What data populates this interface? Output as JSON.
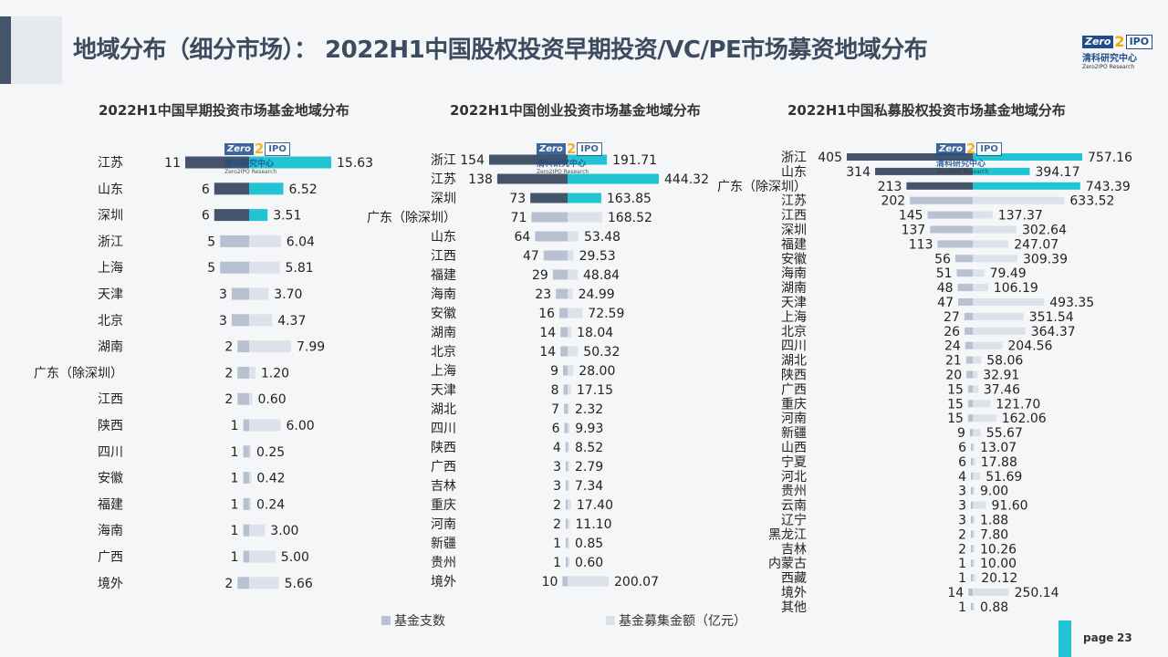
{
  "title": "地域分布（细分市场）：  2022H1中国股权投资早期投资/VC/PE市场募资地域分布",
  "logo": {
    "z": "Zero",
    "two": "2",
    "ipo": "IPO",
    "cn": "清科研究中心",
    "en": "Zero2IPO Research"
  },
  "legend": {
    "count": "基金支数",
    "amount": "基金募集金额（亿元）"
  },
  "page": {
    "label": "page",
    "number": "23"
  },
  "colors": {
    "dark": "#44546a",
    "cyan": "#22c4d3",
    "light_count": "#b7c1d1",
    "light_amount": "#dde2ea",
    "accent": "#22c4d3"
  },
  "chart_data": [
    {
      "type": "bar",
      "title": "2022H1中国早期投资市场基金地域分布",
      "categories": [
        "江苏",
        "山东",
        "深圳",
        "浙江",
        "上海",
        "天津",
        "北京",
        "湖南",
        "广东（除深圳）",
        "江西",
        "陕西",
        "四川",
        "安徽",
        "福建",
        "海南",
        "广西",
        "境外"
      ],
      "series": [
        {
          "name": "基金支数",
          "values": [
            11,
            6,
            6,
            5,
            5,
            3,
            3,
            2,
            2,
            2,
            1,
            1,
            1,
            1,
            1,
            1,
            2
          ]
        },
        {
          "name": "基金募集金额（亿元）",
          "values": [
            15.63,
            6.52,
            3.51,
            6.04,
            5.81,
            3.7,
            4.37,
            7.99,
            1.2,
            0.6,
            6.0,
            0.25,
            0.42,
            0.24,
            3.0,
            5.0,
            5.66
          ]
        }
      ],
      "amount_labels": [
        "15.63",
        "6.52",
        "3.51",
        "6.04",
        "5.81",
        "3.70",
        "4.37",
        "7.99",
        "1.20",
        "0.60",
        "6.00",
        "0.25",
        "0.42",
        "0.24",
        "3.00",
        "5.00",
        "5.66"
      ],
      "highlight_top": 3
    },
    {
      "type": "bar",
      "title": "2022H1中国创业投资市场基金地域分布",
      "categories": [
        "浙江",
        "江苏",
        "深圳",
        "广东（除深圳）",
        "山东",
        "江西",
        "福建",
        "海南",
        "安徽",
        "湖南",
        "北京",
        "上海",
        "天津",
        "湖北",
        "四川",
        "陕西",
        "广西",
        "吉林",
        "重庆",
        "河南",
        "新疆",
        "贵州",
        "境外"
      ],
      "series": [
        {
          "name": "基金支数",
          "values": [
            154,
            138,
            73,
            71,
            64,
            47,
            29,
            23,
            16,
            14,
            14,
            9,
            8,
            7,
            6,
            4,
            3,
            3,
            2,
            2,
            1,
            1,
            10
          ]
        },
        {
          "name": "基金募集金额（亿元）",
          "values": [
            191.71,
            444.32,
            163.85,
            168.52,
            53.48,
            29.53,
            48.84,
            24.99,
            72.59,
            18.04,
            50.32,
            28.0,
            17.15,
            2.32,
            9.93,
            8.52,
            2.79,
            7.34,
            17.4,
            11.1,
            0.85,
            0.6,
            200.07
          ]
        }
      ],
      "amount_labels": [
        "191.71",
        "444.32",
        "163.85",
        "168.52",
        "53.48",
        "29.53",
        "48.84",
        "24.99",
        "72.59",
        "18.04",
        "50.32",
        "28.00",
        "17.15",
        "2.32",
        "9.93",
        "8.52",
        "2.79",
        "7.34",
        "17.40",
        "11.10",
        "0.85",
        "0.60",
        "200.07"
      ],
      "highlight_top": 3
    },
    {
      "type": "bar",
      "title": "2022H1中国私募股权投资市场基金地域分布",
      "categories": [
        "浙江",
        "山东",
        "广东（除深圳）",
        "江苏",
        "江西",
        "深圳",
        "福建",
        "安徽",
        "海南",
        "湖南",
        "天津",
        "上海",
        "北京",
        "四川",
        "湖北",
        "陕西",
        "广西",
        "重庆",
        "河南",
        "新疆",
        "山西",
        "宁夏",
        "河北",
        "贵州",
        "云南",
        "辽宁",
        "黑龙江",
        "吉林",
        "内蒙古",
        "西藏",
        "境外",
        "其他"
      ],
      "series": [
        {
          "name": "基金支数",
          "values": [
            405,
            314,
            213,
            202,
            145,
            137,
            113,
            56,
            51,
            48,
            47,
            27,
            26,
            24,
            21,
            20,
            15,
            15,
            15,
            9,
            6,
            6,
            4,
            3,
            3,
            3,
            2,
            2,
            1,
            1,
            14,
            1
          ]
        },
        {
          "name": "基金募集金额（亿元）",
          "values": [
            757.16,
            394.17,
            743.39,
            633.52,
            137.37,
            302.64,
            247.07,
            309.39,
            79.49,
            106.19,
            493.35,
            351.54,
            364.37,
            204.56,
            58.06,
            32.91,
            37.46,
            121.7,
            162.06,
            55.67,
            13.07,
            17.88,
            51.69,
            9.0,
            91.6,
            1.88,
            7.8,
            10.26,
            10.0,
            20.12,
            250.14,
            0.88
          ]
        }
      ],
      "amount_labels": [
        "757.16",
        "394.17",
        "743.39",
        "633.52",
        "137.37",
        "302.64",
        "247.07",
        "309.39",
        "79.49",
        "106.19",
        "493.35",
        "351.54",
        "364.37",
        "204.56",
        "58.06",
        "32.91",
        "37.46",
        "121.70",
        "162.06",
        "55.67",
        "13.07",
        "17.88",
        "51.69",
        "9.00",
        "91.60",
        "1.88",
        "7.80",
        "10.26",
        "10.00",
        "20.12",
        "250.14",
        "0.88"
      ],
      "highlight_top": 3
    }
  ]
}
